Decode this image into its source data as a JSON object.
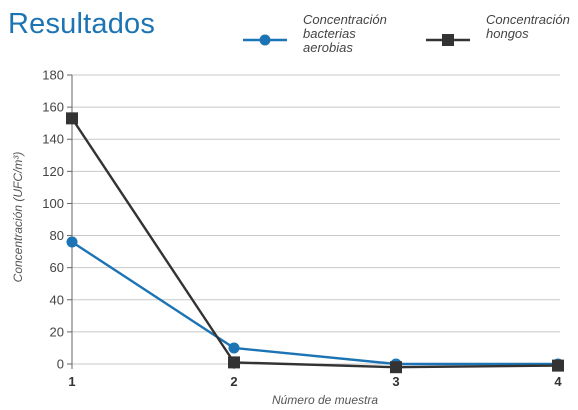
{
  "page_title": "Resultados",
  "legend": [
    {
      "label": "Concentración\nbacterias\naerobias",
      "marker": "circle",
      "color": "#1d74b4"
    },
    {
      "label": "Concentración\nhongos",
      "marker": "square",
      "color": "#333333"
    }
  ],
  "chart_data": {
    "type": "line",
    "xlabel": "Número de muestra",
    "ylabel": "Concentración (UFC/m³)",
    "x": [
      "1",
      "2",
      "3",
      "4"
    ],
    "ylim": [
      0,
      180
    ],
    "yticks": [
      "0",
      "20",
      "40",
      "60",
      "80",
      "100",
      "120",
      "140",
      "160",
      "180"
    ],
    "grid": true,
    "series": [
      {
        "name": "Concentración bacterias aerobias",
        "values": [
          76,
          10,
          0,
          0
        ],
        "color": "#1d74b4",
        "marker": "circle"
      },
      {
        "name": "Concentración hongos",
        "values": [
          153,
          1,
          -2,
          -1
        ],
        "color": "#333333",
        "marker": "square"
      }
    ]
  }
}
